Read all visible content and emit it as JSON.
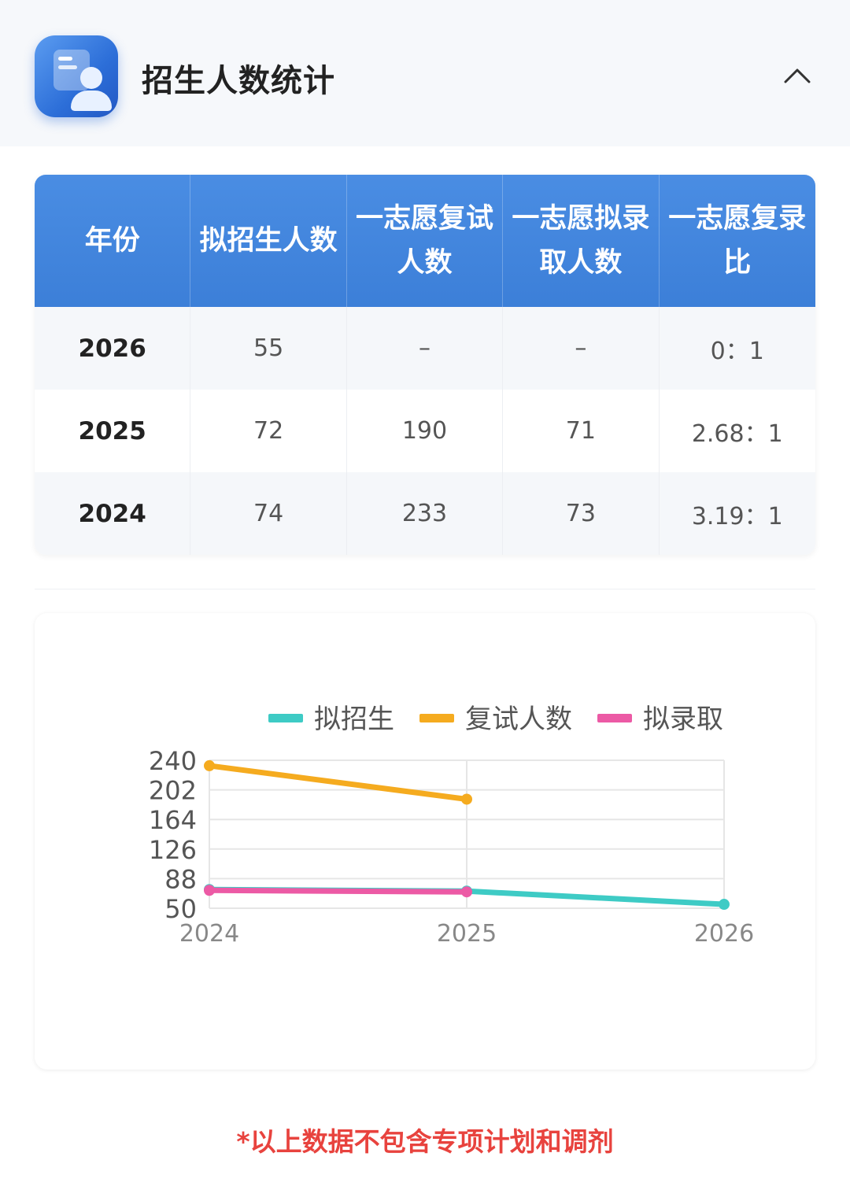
{
  "header": {
    "title": "招生人数统计",
    "icon": "student-profile-icon",
    "collapse_icon": "chevron-up-icon"
  },
  "table": {
    "headers": [
      "年份",
      "拟招生人数",
      "一志愿复试人数",
      "一志愿拟录取人数",
      "一志愿复录比"
    ],
    "header_color": "#3c7fd8",
    "rows": [
      [
        "2026",
        "55",
        "–",
        "–",
        "0：1"
      ],
      [
        "2025",
        "72",
        "190",
        "71",
        "2.68：1"
      ],
      [
        "2024",
        "74",
        "233",
        "73",
        "3.19：1"
      ]
    ]
  },
  "chart_data": {
    "type": "line",
    "categories": [
      "2024",
      "2025",
      "2026"
    ],
    "series": [
      {
        "name": "拟招生",
        "color": "#3ecbc5",
        "values": [
          74,
          72,
          55
        ]
      },
      {
        "name": "复试人数",
        "color": "#f5ab1f",
        "values": [
          233,
          190,
          null
        ]
      },
      {
        "name": "拟录取",
        "color": "#ec5aa5",
        "values": [
          73,
          71,
          null
        ]
      }
    ],
    "y_ticks": [
      "240",
      "202",
      "164",
      "126",
      "88",
      "50"
    ],
    "ylim": [
      50,
      240
    ],
    "legend_position": "top",
    "grid": true
  },
  "footnote": "*以上数据不包含专项计划和调剂"
}
